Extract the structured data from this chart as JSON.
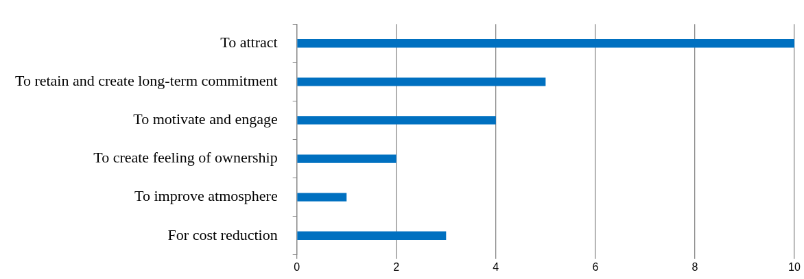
{
  "chart_data": {
    "type": "bar",
    "orientation": "horizontal",
    "categories": [
      "To attract",
      "To retain and create long-term commitment",
      "To motivate and engage",
      "To create feeling of ownership",
      "To improve atmosphere",
      "For cost reduction"
    ],
    "values": [
      10,
      5,
      4,
      2,
      1,
      3
    ],
    "color": "#0070c0",
    "xlim": [
      0,
      10
    ],
    "xticks": [
      0,
      2,
      4,
      6,
      8,
      10
    ],
    "grid": "x"
  }
}
